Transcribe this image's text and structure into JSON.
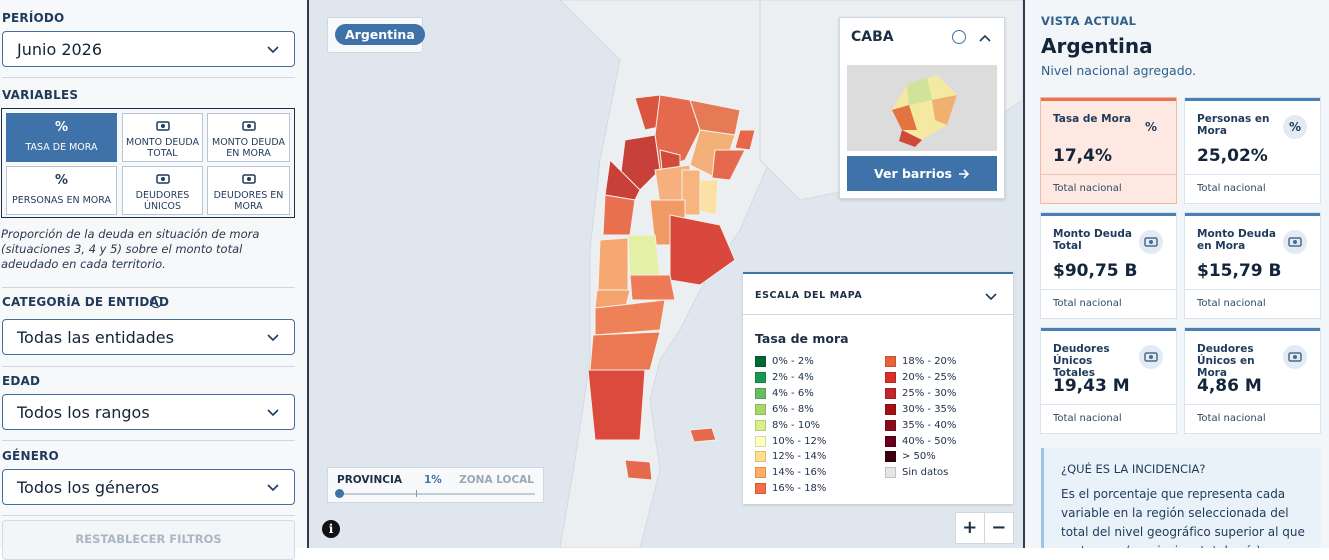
{
  "filters": {
    "period_label": "PERÍODO",
    "period": "Junio 2026",
    "variables_label": "VARIABLES",
    "variables": [
      {
        "icon": "%",
        "label": "TASA DE MORA",
        "active": true
      },
      {
        "label": "MONTO DEUDA TOTAL"
      },
      {
        "label": "MONTO DEUDA EN MORA"
      },
      {
        "icon": "%",
        "label": "PERSONAS EN MORA"
      },
      {
        "label": "DEUDORES ÚNICOS"
      },
      {
        "label": "DEUDORES EN MORA"
      }
    ],
    "description": "Proporción de la deuda en situación de mora (situaciones 3, 4 y 5) sobre el monto total adeudado en cada territorio.",
    "entity_label": "CATEGORÍA DE ENTIDAD",
    "entity": "Todas las entidades",
    "age_label": "EDAD",
    "age": "Todos los rangos",
    "gender_label": "GÉNERO",
    "gender": "Todos los géneros",
    "reset": "RESTABLECER FILTROS"
  },
  "map": {
    "region_chip": "Argentina",
    "inset": {
      "title": "CABA",
      "button": "Ver barrios"
    },
    "legend": {
      "title": "ESCALA DEL MAPA",
      "variable": "Tasa de mora",
      "items": [
        {
          "label": "0% - 2%",
          "color": "#006837"
        },
        {
          "label": "2% - 4%",
          "color": "#1a9850"
        },
        {
          "label": "4% - 6%",
          "color": "#66bd63"
        },
        {
          "label": "6% - 8%",
          "color": "#a6d96a"
        },
        {
          "label": "8% - 10%",
          "color": "#d9ef8b"
        },
        {
          "label": "10% - 12%",
          "color": "#ffffbf"
        },
        {
          "label": "12% - 14%",
          "color": "#fee08b"
        },
        {
          "label": "14% - 16%",
          "color": "#fdae61"
        },
        {
          "label": "16% - 18%",
          "color": "#f46d43"
        },
        {
          "label": "18% - 20%",
          "color": "#e8603c"
        },
        {
          "label": "20% - 25%",
          "color": "#d73027"
        },
        {
          "label": "25% - 30%",
          "color": "#c2252b"
        },
        {
          "label": "30% - 35%",
          "color": "#a50f15"
        },
        {
          "label": "35% - 40%",
          "color": "#8b0a1e"
        },
        {
          "label": "40% - 50%",
          "color": "#67001f"
        },
        {
          "label": "> 50%",
          "color": "#3d0010"
        },
        {
          "label": "Sin datos",
          "color": "#e5e5e5"
        }
      ]
    },
    "slider": {
      "left": "PROVINCIA",
      "value": "1%",
      "right": "ZONA LOCAL"
    },
    "zoom_in": "+",
    "zoom_out": "−",
    "info": "i"
  },
  "current_view": {
    "label": "VISTA ACTUAL",
    "title": "Argentina",
    "subtitle": "Nivel nacional agregado.",
    "cards": [
      {
        "label": "Tasa de Mora",
        "value": "17,4%",
        "note": "Total nacional",
        "icon": "%",
        "active": true
      },
      {
        "label": "Personas en Mora",
        "value": "25,02%",
        "note": "Total nacional",
        "icon": "%"
      },
      {
        "label": "Monto Deuda Total",
        "value": "$90,75 B",
        "note": "Total nacional"
      },
      {
        "label": "Monto Deuda en Mora",
        "value": "$15,79 B",
        "note": "Total nacional"
      },
      {
        "label": "Deudores Únicos Totales",
        "value": "19,43 M",
        "note": "Total nacional"
      },
      {
        "label": "Deudores Únicos en Mora",
        "value": "4,86 M",
        "note": "Total nacional"
      }
    ],
    "info": {
      "title": "¿QUÉ ES LA INCIDENCIA?",
      "text": "Es el porcentaje que representa cada variable en la región seleccionada del total del nivel geográfico superior al que pertenece (provincia o total país)."
    }
  }
}
